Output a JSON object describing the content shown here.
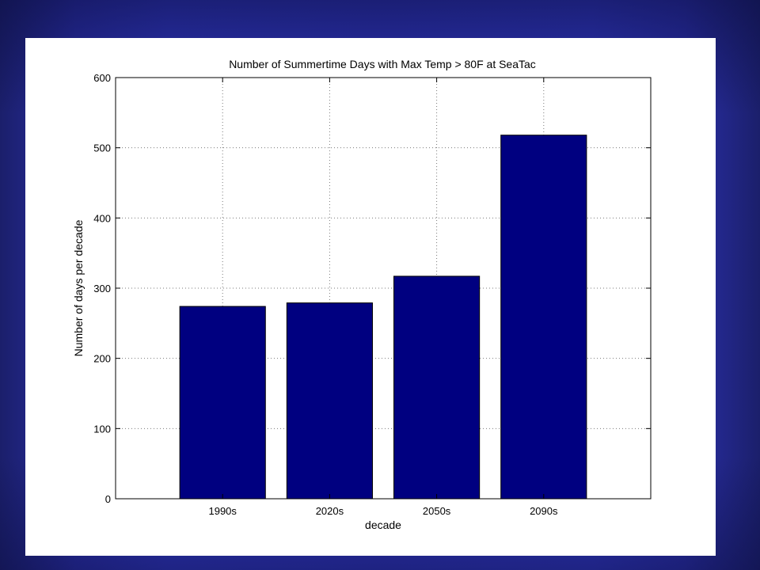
{
  "chart_data": {
    "type": "bar",
    "title": "Number of Summertime Days with Max Temp > 80F at SeaTac",
    "xlabel": "decade",
    "ylabel": "Number of days per decade",
    "categories": [
      "1990s",
      "2020s",
      "2050s",
      "2090s"
    ],
    "values": [
      274,
      279,
      317,
      518
    ],
    "ylim": [
      0,
      600
    ],
    "yticks": [
      0,
      100,
      200,
      300,
      400,
      500,
      600
    ],
    "grid": true,
    "bar_color": "#000080"
  },
  "colors": {
    "background_gradient": "#2f35bb",
    "panel": "#ffffff",
    "bar": "#000080"
  }
}
